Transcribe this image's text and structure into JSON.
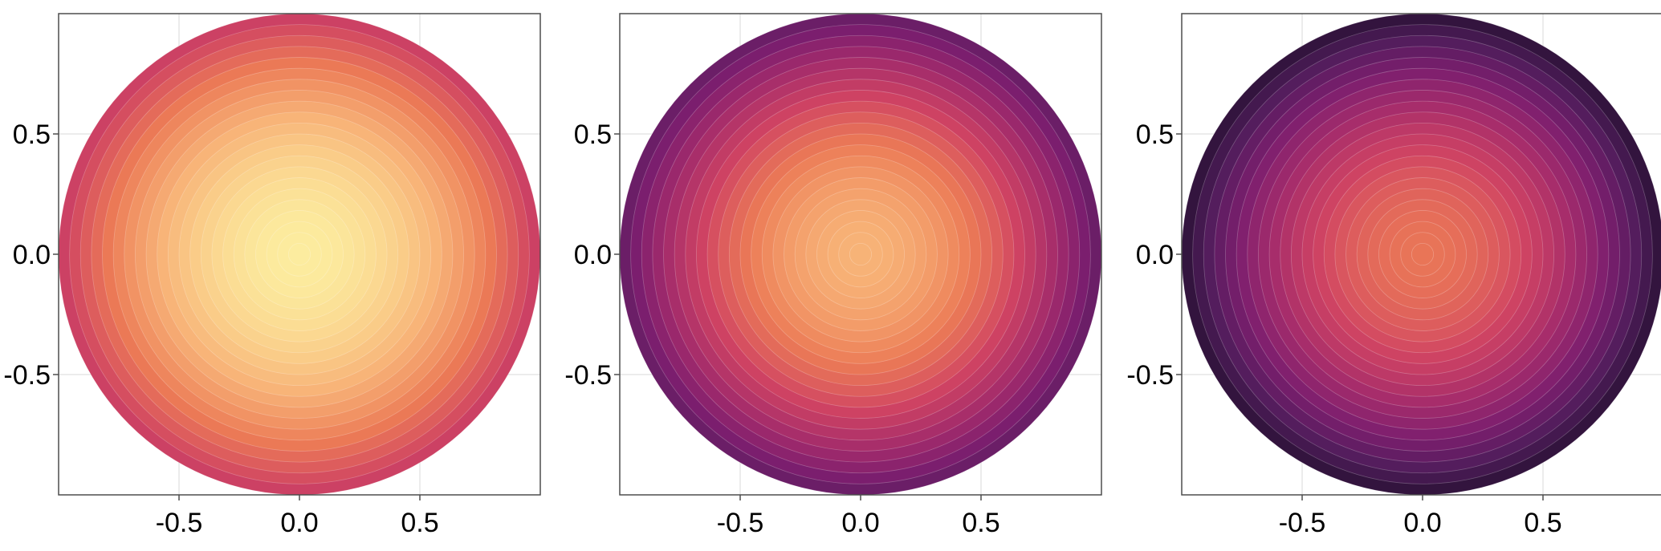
{
  "chart_data": [
    {
      "type": "heatmap",
      "title": "",
      "xlabel": "",
      "ylabel": "",
      "xlim": [
        -1,
        1
      ],
      "ylim": [
        -1,
        1
      ],
      "xticks": [
        -0.5,
        0.0,
        0.5
      ],
      "yticks": [
        -0.5,
        0.0,
        0.5
      ],
      "xtick_labels": [
        "-0.5",
        "0.0",
        "0.5"
      ],
      "ytick_labels": [
        "-0.5",
        "0.0",
        "0.5"
      ],
      "grid": true,
      "shape": "disk",
      "radius": 1.0,
      "levels": 22,
      "colormap": [
        "#fcec9f",
        "#f8b679",
        "#ec7b56",
        "#cf4363",
        "#a52c6b",
        "#7b1e6e",
        "#521d5c",
        "#2a1136"
      ],
      "center_level": 0.0,
      "edge_level": 0.46
    },
    {
      "type": "heatmap",
      "title": "",
      "xlabel": "",
      "ylabel": "",
      "xlim": [
        -1,
        1
      ],
      "ylim": [
        -1,
        1
      ],
      "xticks": [
        -0.5,
        0.0,
        0.5
      ],
      "yticks": [
        -0.5,
        0.0,
        0.5
      ],
      "xtick_labels": [
        "-0.5",
        "0.0",
        "0.5"
      ],
      "ytick_labels": [
        "-0.5",
        "0.0",
        "0.5"
      ],
      "grid": true,
      "shape": "disk",
      "radius": 1.0,
      "levels": 22,
      "colormap": [
        "#fcec9f",
        "#f8b679",
        "#ec7b56",
        "#cf4363",
        "#a52c6b",
        "#7b1e6e",
        "#521d5c",
        "#2a1136"
      ],
      "center_level": 0.15,
      "edge_level": 0.8
    },
    {
      "type": "heatmap",
      "title": "",
      "xlabel": "",
      "ylabel": "",
      "xlim": [
        -1,
        1
      ],
      "ylim": [
        -1,
        1
      ],
      "xticks": [
        -0.5,
        0.0,
        0.5
      ],
      "yticks": [
        -0.5,
        0.0,
        0.5
      ],
      "xtick_labels": [
        "-0.5",
        "0.0",
        "0.5"
      ],
      "ytick_labels": [
        "-0.5",
        "0.0",
        "0.5"
      ],
      "grid": true,
      "shape": "disk",
      "radius": 1.0,
      "levels": 22,
      "colormap": [
        "#fcec9f",
        "#f8b679",
        "#ec7b56",
        "#cf4363",
        "#a52c6b",
        "#7b1e6e",
        "#521d5c",
        "#2a1136"
      ],
      "center_level": 0.3,
      "edge_level": 1.0
    }
  ]
}
